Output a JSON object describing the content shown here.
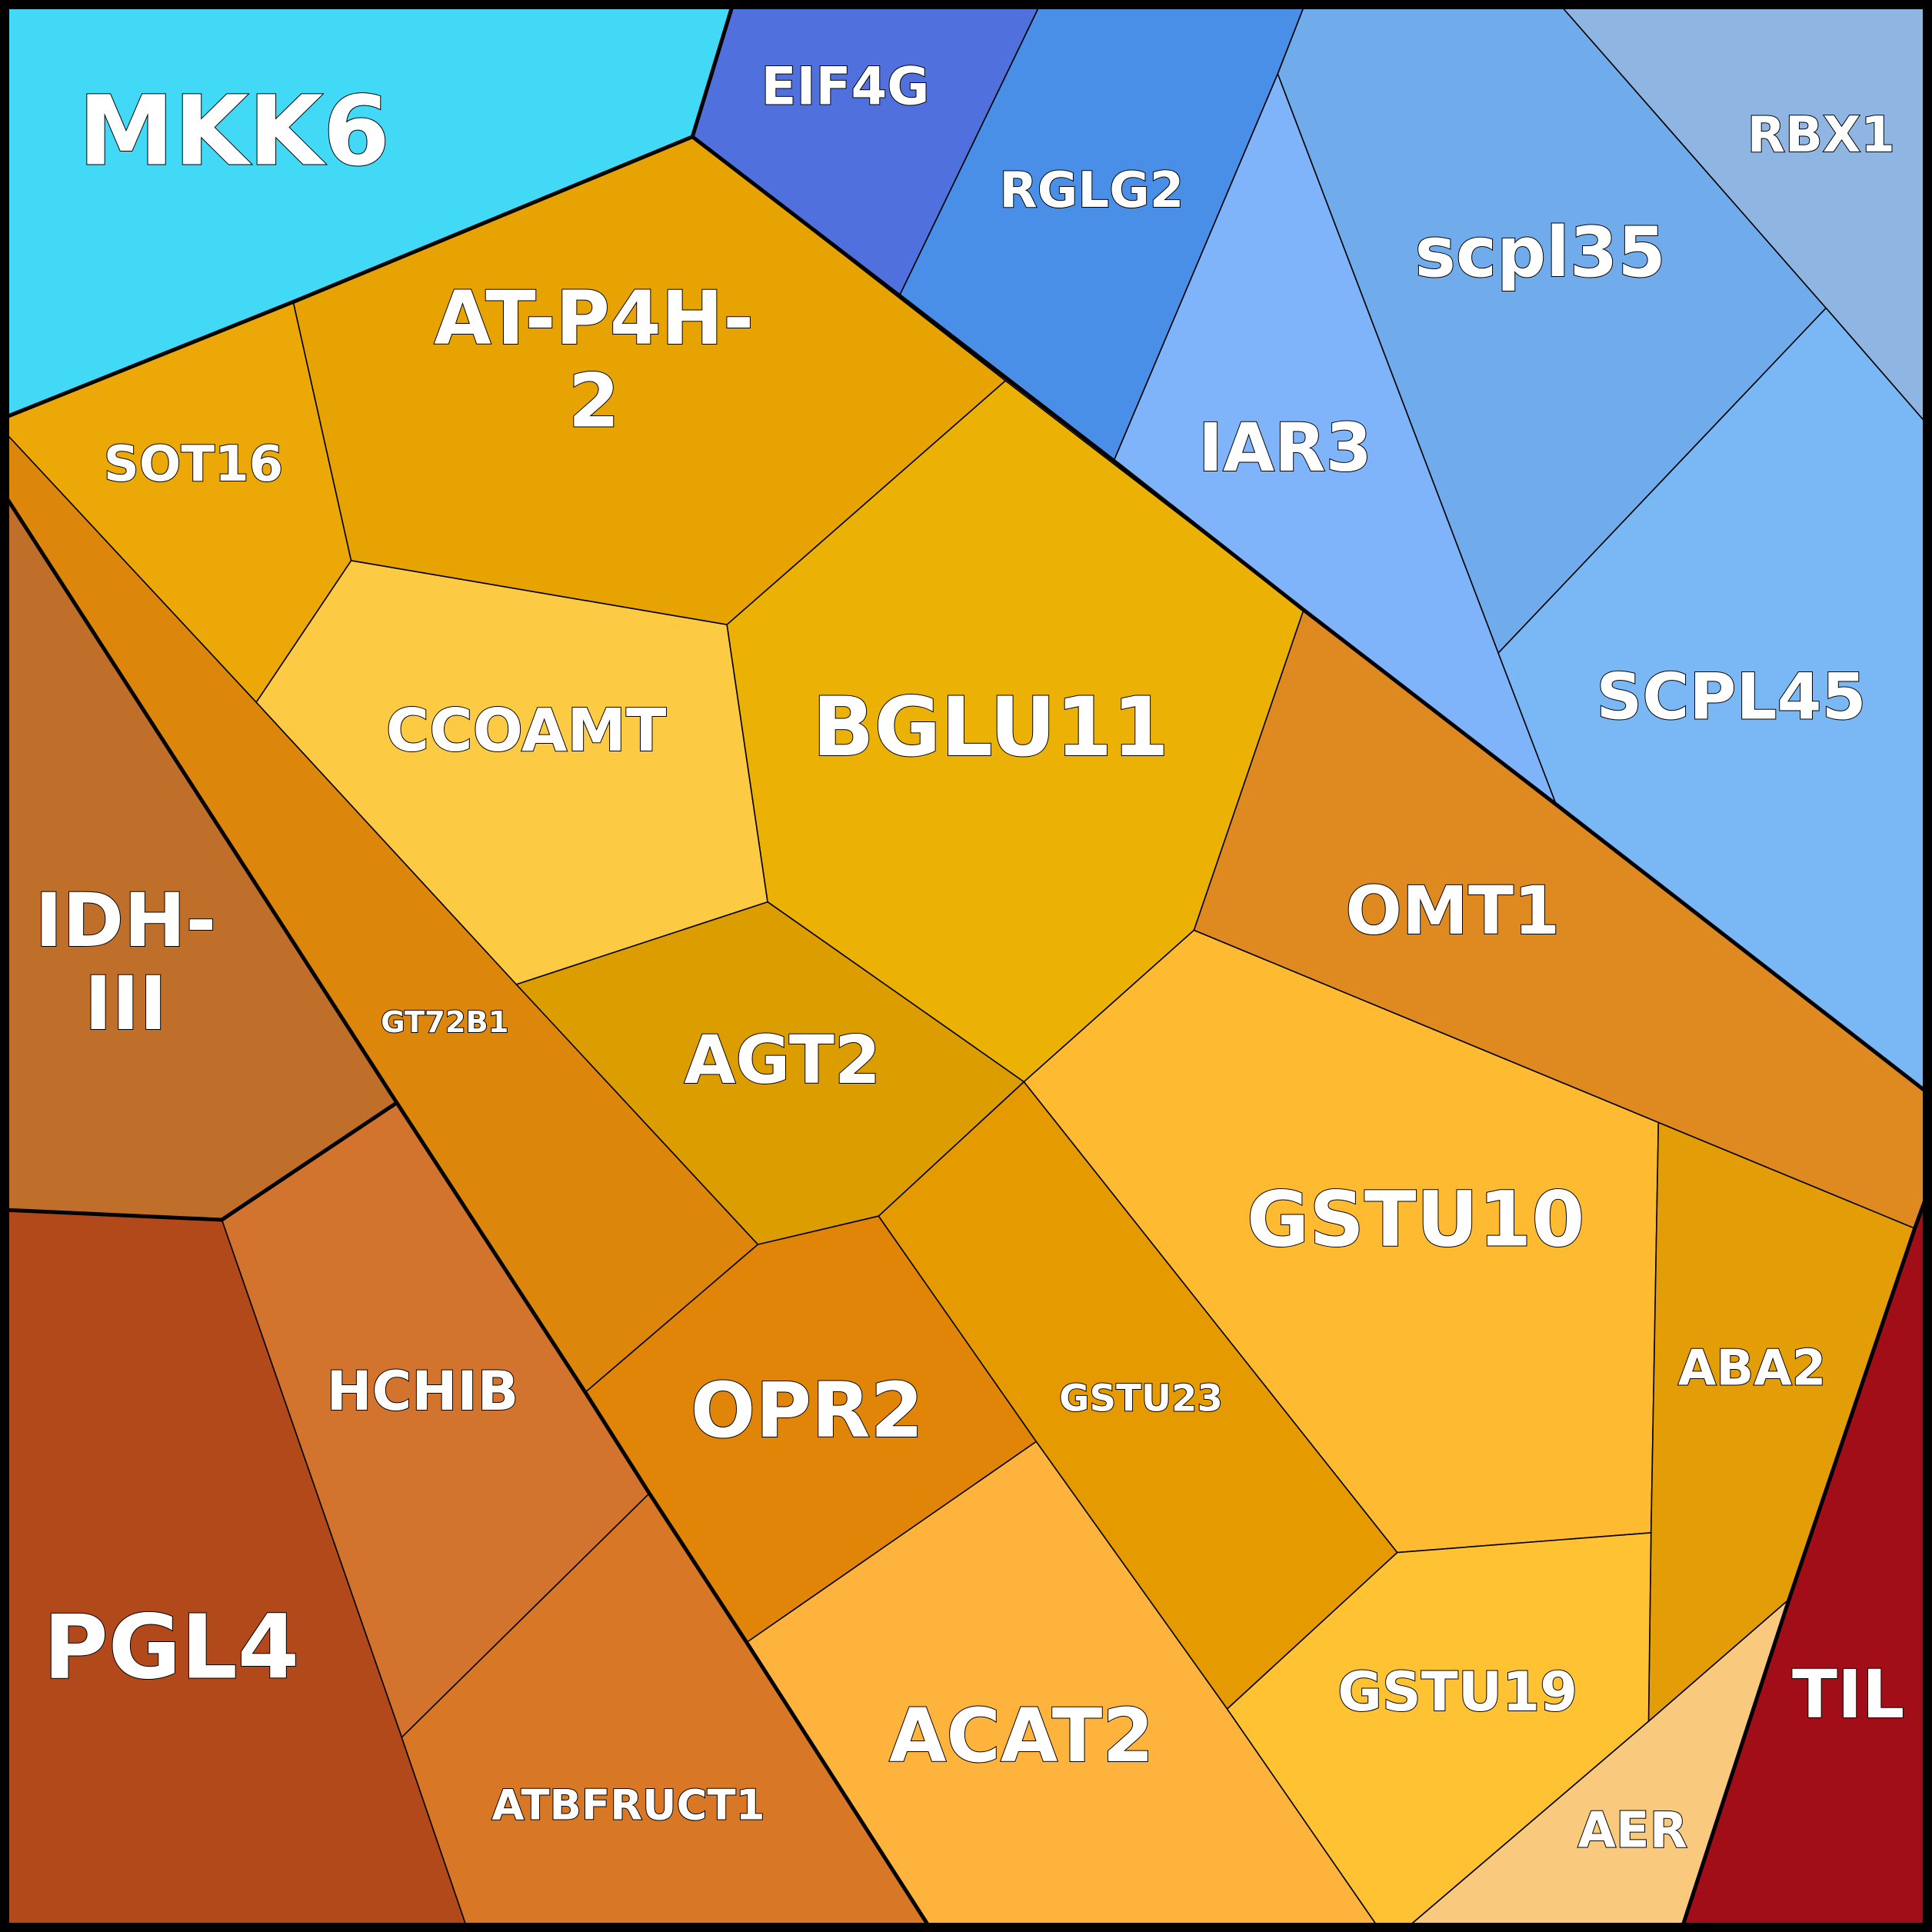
{
  "treemap": {
    "cells": [
      {
        "id": "mkk6",
        "label": "MKK6",
        "color": "#41d9f6"
      },
      {
        "id": "eif4g",
        "label": "EIF4G",
        "color": "#4f70dd"
      },
      {
        "id": "rglg2",
        "label": "RGLG2",
        "color": "#4a8fe7"
      },
      {
        "id": "scpl35",
        "label": "scpl35",
        "color": "#70aceb"
      },
      {
        "id": "rbx1",
        "label": "RBX1",
        "color": "#8fb5e3"
      },
      {
        "id": "iar3",
        "label": "IAR3",
        "color": "#80b4fa"
      },
      {
        "id": "scpl45",
        "label": "SCPL45",
        "color": "#79b8f5"
      },
      {
        "id": "sot16",
        "label": "SOT16",
        "color": "#eba807"
      },
      {
        "id": "at-p4h-2",
        "label": [
          "AT-P4H-",
          "2"
        ],
        "color": "#e6a301"
      },
      {
        "id": "ccoamt",
        "label": "CCOAMT",
        "color": "#fdcb43"
      },
      {
        "id": "bglu11",
        "label": "BGLU11",
        "color": "#ebb105"
      },
      {
        "id": "agt2",
        "label": "AGT2",
        "color": "#dc9d00"
      },
      {
        "id": "gt72b1",
        "label": "GT72B1",
        "color": "#dc870b"
      },
      {
        "id": "omt1",
        "label": "OMT1",
        "color": "#de8a21"
      },
      {
        "id": "gstu10",
        "label": "GSTU10",
        "color": "#febb31"
      },
      {
        "id": "aba2",
        "label": "ABA2",
        "color": "#e39d06"
      },
      {
        "id": "gstu23",
        "label": "GSTU23",
        "color": "#e59a00"
      },
      {
        "id": "opr2",
        "label": "OPR2",
        "color": "#e18508"
      },
      {
        "id": "acat2",
        "label": "ACAT2",
        "color": "#feb33c"
      },
      {
        "id": "gstu19",
        "label": "GSTU19",
        "color": "#fec232"
      },
      {
        "id": "aer",
        "label": "AER",
        "color": "#f9c97d"
      },
      {
        "id": "til",
        "label": "TIL",
        "color": "#a20e17"
      },
      {
        "id": "idh-iii",
        "label": [
          "IDH-",
          "III"
        ],
        "color": "#c06f2b"
      },
      {
        "id": "hchib",
        "label": "HCHIB",
        "color": "#d2742d"
      },
      {
        "id": "pgl4",
        "label": "PGL4",
        "color": "#b1491b"
      },
      {
        "id": "atbfruct1",
        "label": "ATBFRUCT1",
        "color": "#d87725"
      }
    ]
  }
}
